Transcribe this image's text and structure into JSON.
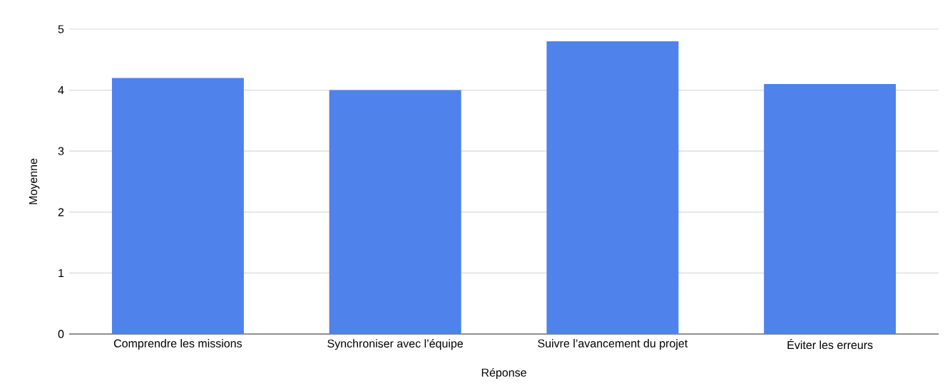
{
  "chart_data": {
    "type": "bar",
    "xlabel": "Réponse",
    "ylabel": "Moyenne",
    "categories": [
      "Comprendre les missions",
      "Synchroniser avec l’équipe",
      "Suivre l’avancement du projet",
      "Éviter les erreurs"
    ],
    "values": [
      4.2,
      4.0,
      4.8,
      4.1
    ],
    "color": "#4f82ea",
    "ylim": [
      0,
      5
    ],
    "yticks": [
      0,
      1,
      2,
      3,
      4,
      5
    ],
    "grid": "y"
  }
}
